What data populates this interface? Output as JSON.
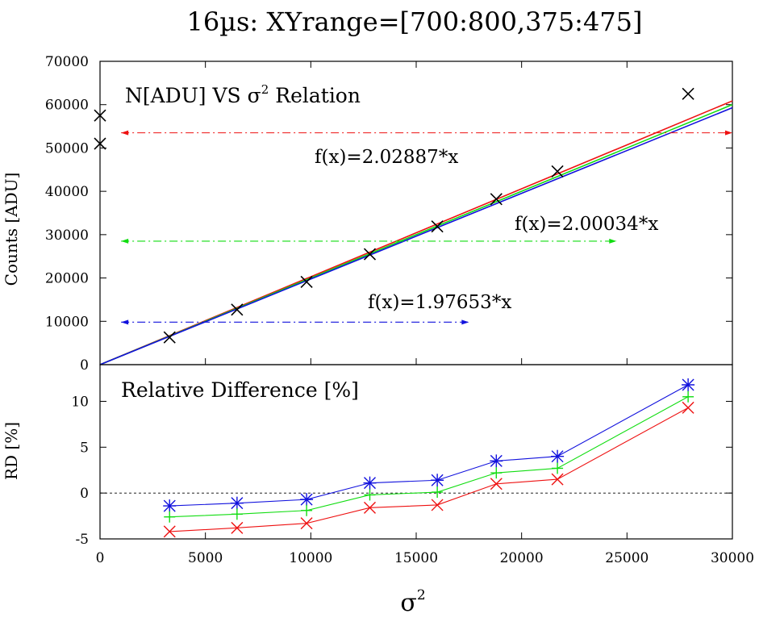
{
  "title": "16µs: XYrange=[700:800,375:475]",
  "colors": {
    "red": "#ee1111",
    "green": "#11dd11",
    "blue": "#1111dd",
    "black": "#000000"
  },
  "chart_data": [
    {
      "id": "top",
      "type": "scatter",
      "panel_title": "N[ADU] VS σ",
      "panel_title_sup": "2",
      "panel_title_tail": "Relation",
      "ylabel": "Counts [ADU]",
      "xlim": [
        0,
        30000
      ],
      "ylim": [
        0,
        70000
      ],
      "yticks": [
        "0",
        "10000",
        "20000",
        "30000",
        "40000",
        "50000",
        "60000",
        "70000"
      ],
      "points": {
        "x": [
          0,
          0,
          3300,
          6500,
          9800,
          12800,
          16000,
          18800,
          21700,
          27900
        ],
        "y": [
          57500,
          51000,
          6300,
          12700,
          19100,
          25500,
          31900,
          38200,
          44600,
          62500
        ]
      },
      "fits": [
        {
          "label": "f(x)=2.02887*x",
          "slope": 2.02887,
          "color": "red"
        },
        {
          "label": "f(x)=2.00034*x",
          "slope": 2.00034,
          "color": "green"
        },
        {
          "label": "f(x)=1.97653*x",
          "slope": 1.97653,
          "color": "blue"
        }
      ],
      "ranges": [
        {
          "color": "red",
          "x": [
            1000,
            30000
          ],
          "y": 53500
        },
        {
          "color": "green",
          "x": [
            1000,
            24500
          ],
          "y": 28500
        },
        {
          "color": "blue",
          "x": [
            1000,
            17500
          ],
          "y": 9800
        }
      ]
    },
    {
      "id": "bottom",
      "type": "line",
      "panel_title": "Relative Difference [%]",
      "ylabel": "RD [%]",
      "xlabel": "σ",
      "xlabel_sup": "2",
      "xlim": [
        0,
        30000
      ],
      "ylim": [
        -5,
        14
      ],
      "yticks": [
        "-5",
        "0",
        "5",
        "10"
      ],
      "xticks": [
        "0",
        "5000",
        "10000",
        "15000",
        "20000",
        "25000",
        "30000"
      ],
      "x": [
        3300,
        6500,
        9800,
        12800,
        16000,
        18800,
        21700,
        27900
      ],
      "series": [
        {
          "color": "blue",
          "marker": "star",
          "values": [
            -1.4,
            -1.1,
            -0.7,
            1.1,
            1.4,
            3.5,
            4.0,
            11.8
          ]
        },
        {
          "color": "green",
          "marker": "plus",
          "values": [
            -2.6,
            -2.3,
            -1.9,
            -0.2,
            0.1,
            2.2,
            2.7,
            10.5
          ]
        },
        {
          "color": "red",
          "marker": "x",
          "values": [
            -4.2,
            -3.8,
            -3.3,
            -1.6,
            -1.3,
            1.0,
            1.5,
            9.3
          ]
        }
      ]
    }
  ]
}
